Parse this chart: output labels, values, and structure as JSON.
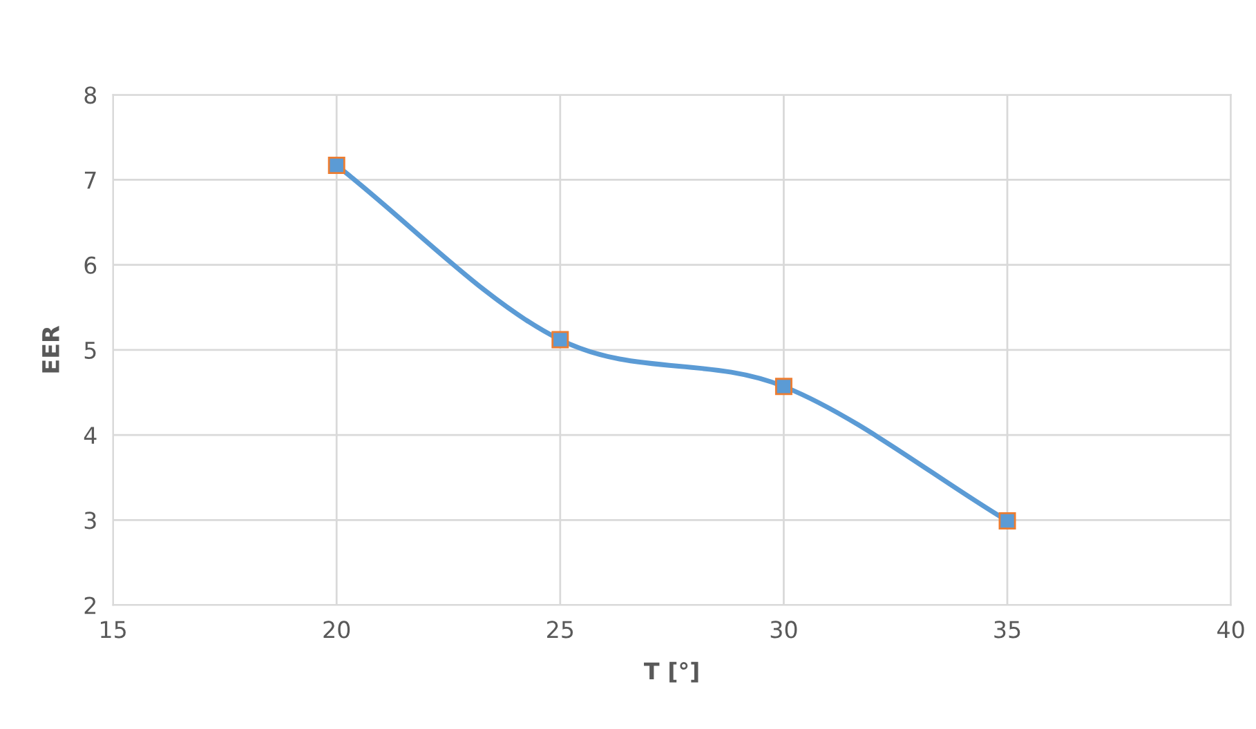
{
  "chart_data": {
    "type": "line",
    "xlabel": "T [°]",
    "ylabel": "EER",
    "x": [
      20,
      25,
      30,
      35
    ],
    "series": [
      {
        "color": "#5b9bd5",
        "values": [
          7.17,
          5.12,
          4.57,
          2.99
        ]
      }
    ],
    "marker": "square",
    "line_style": "solid",
    "xlim": [
      15,
      40
    ],
    "xticks": [
      15,
      20,
      25,
      30,
      35,
      40
    ],
    "ylim": [
      2,
      8
    ],
    "yticks": [
      2,
      3,
      4,
      5,
      6,
      7,
      8
    ],
    "grid": true
  }
}
